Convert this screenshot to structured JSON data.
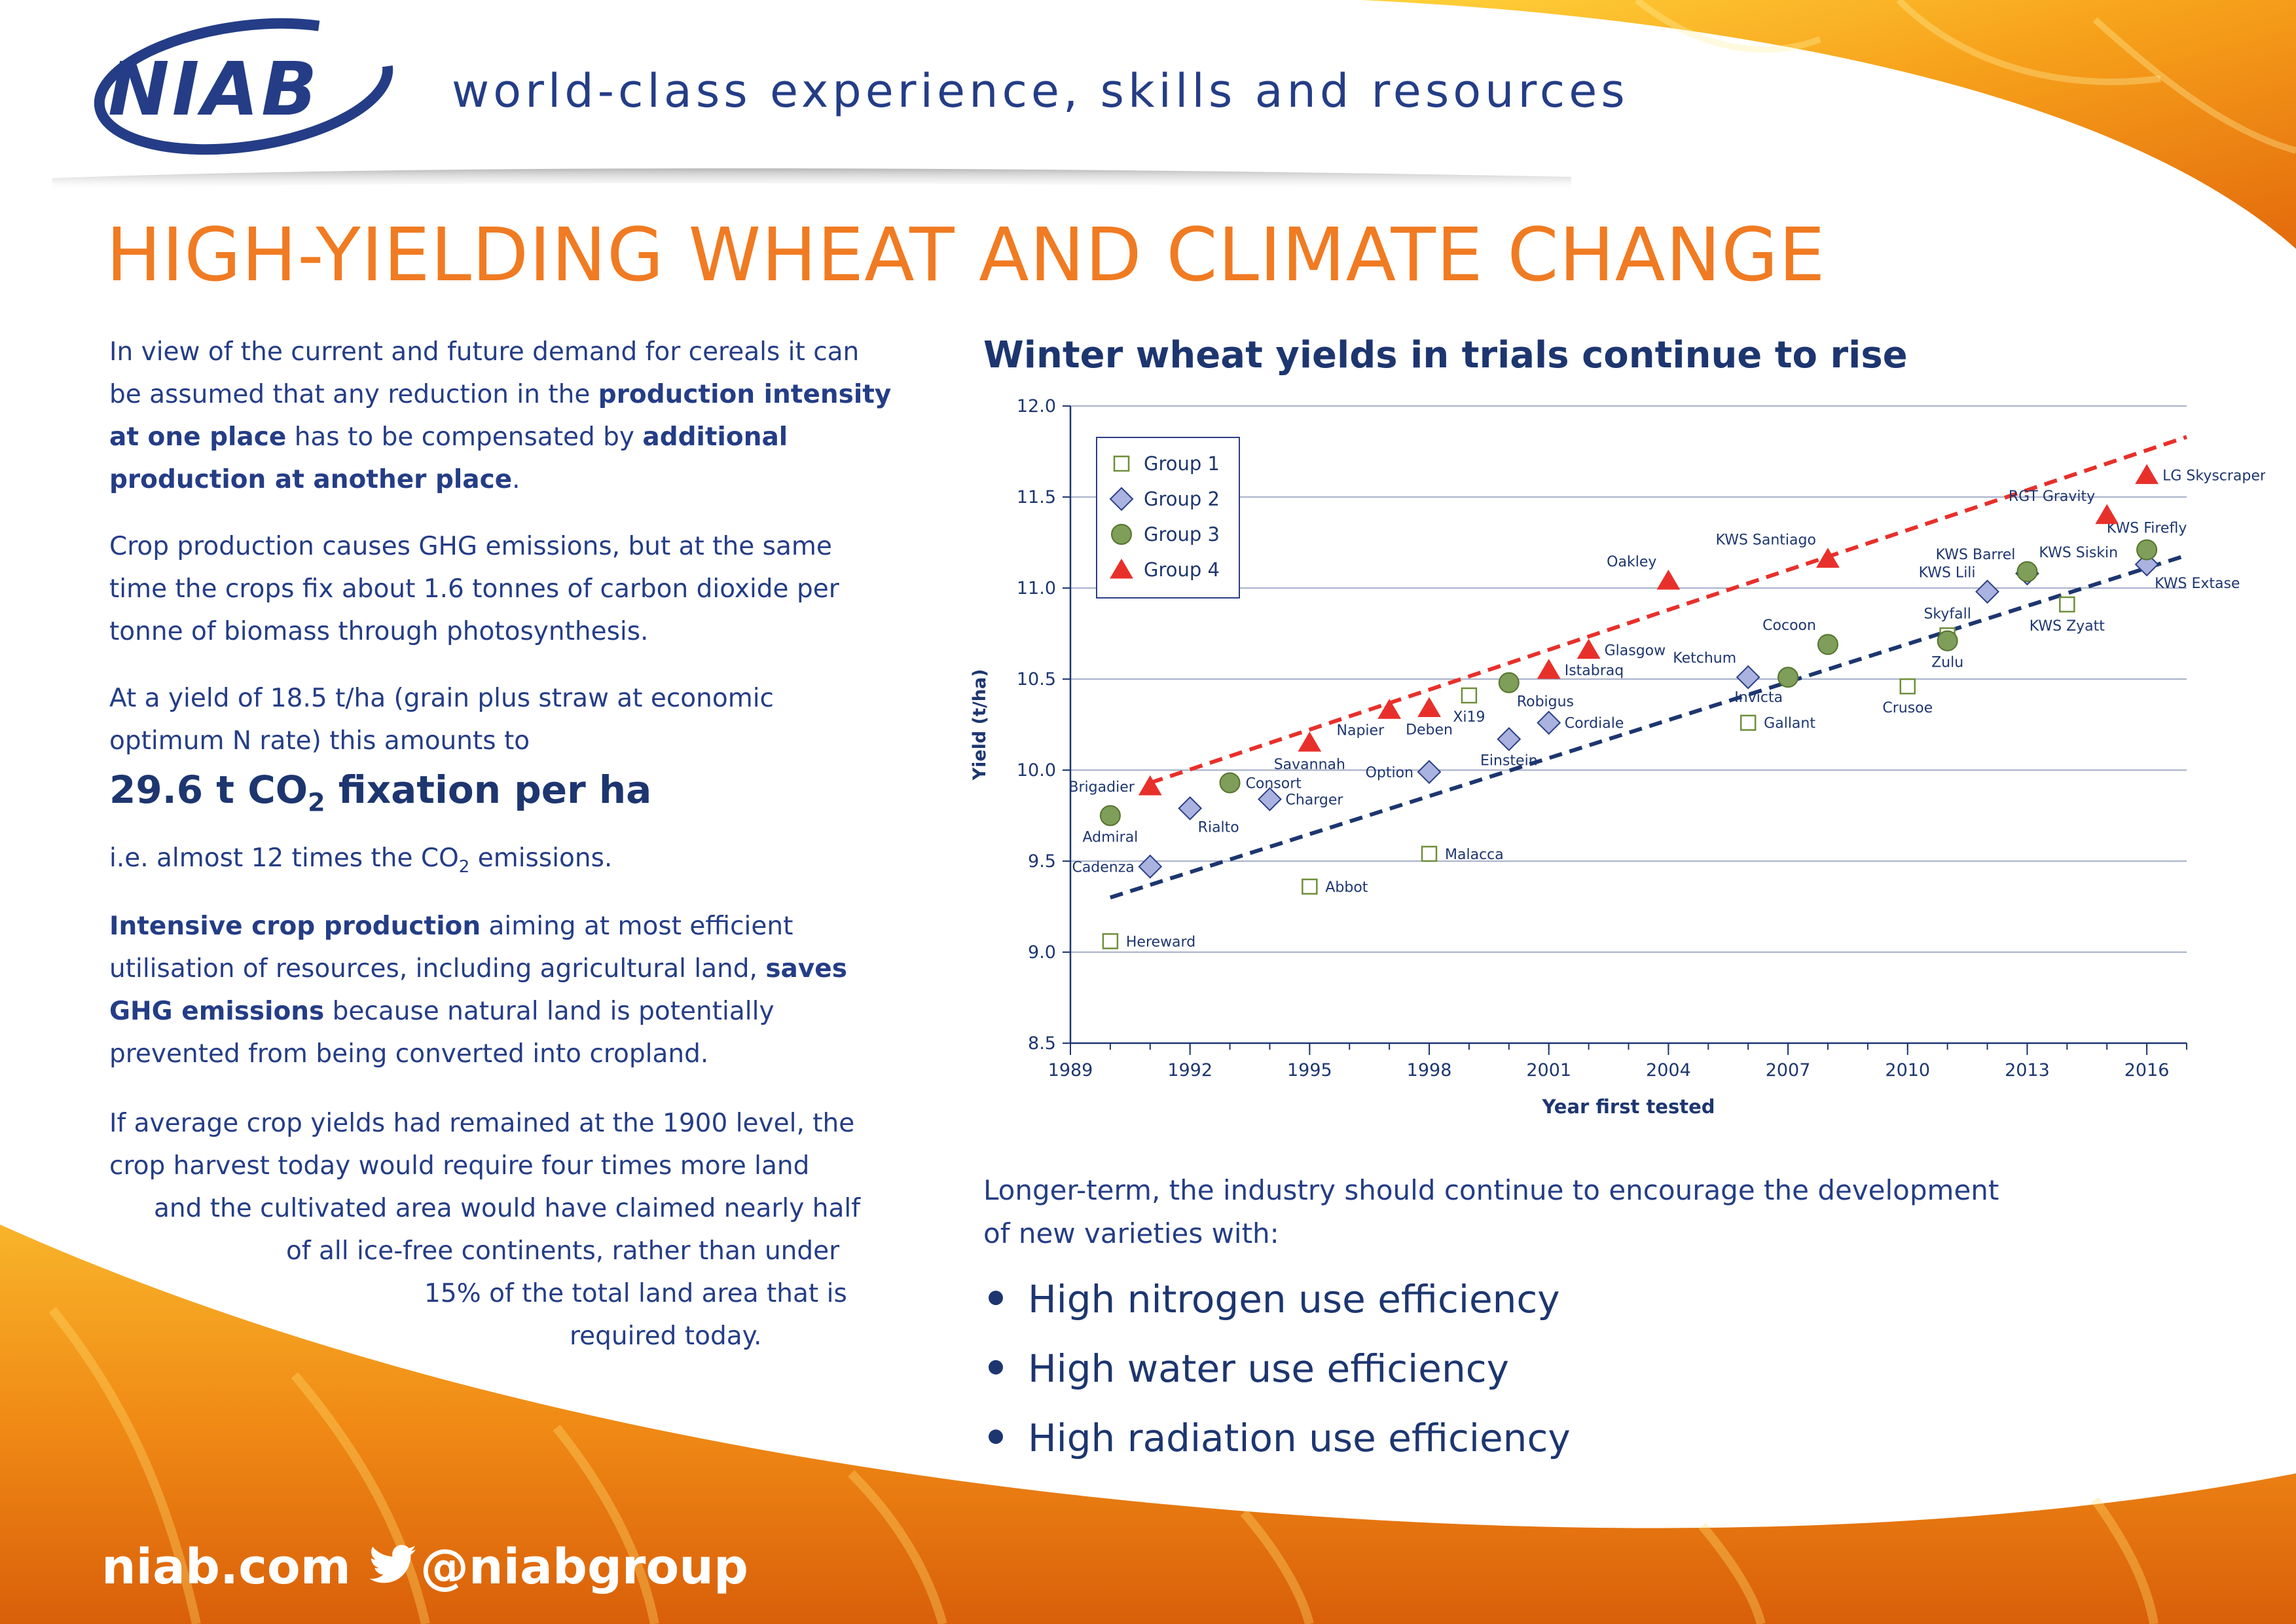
{
  "header": {
    "logo_text": "NIAB",
    "tagline": "world-class experience, skills and resources"
  },
  "title": "HIGH-YIELDING WHEAT AND CLIMATE CHANGE",
  "left": {
    "p1": {
      "s1": "In view of the current and future demand for cereals it can be assumed that any reduction in the ",
      "b1": "production intensity at one place",
      "s2": " has to be compensated by ",
      "b2": "additional production at another place",
      "s3": "."
    },
    "p2": "Crop production causes GHG emissions, but at the same time the crops fix about 1.6 tonnes of carbon dioxide per tonne of biomass through photosynthesis.",
    "p3": "At a yield of 18.5 t/ha (grain plus straw at economic optimum N rate) this amounts to",
    "big_stat": {
      "a": "29.6 t CO",
      "sub": "2",
      "b": " fixation per ha"
    },
    "p4": {
      "a": "i.e. almost 12 times the CO",
      "sub": "2",
      "b": " emissions."
    },
    "p5": {
      "b1": "Intensive crop production",
      "s1": " aiming at most efficient utilisation of resources, including agricultural land, ",
      "b2": "saves GHG emissions",
      "s2": " because natural land is potentially prevented from being converted into cropland."
    },
    "p6_lines": [
      "If average crop yields had remained at the 1900 level, the",
      "crop harvest today would require four times more land",
      "and the cultivated area would have claimed nearly half",
      "of all ice-free continents, rather than under",
      "15% of the total land area that is",
      "required today."
    ]
  },
  "chart_title": "Winter wheat yields in trials continue to rise",
  "chart_data": {
    "type": "scatter",
    "title": "Winter wheat yields in trials continue to rise",
    "xlabel": "Year first tested",
    "ylabel": "Yield (t/ha)",
    "xlim": [
      1989,
      2017
    ],
    "ylim": [
      8.5,
      12.0
    ],
    "xticks": [
      "1989",
      "1992",
      "1995",
      "1998",
      "2001",
      "2004",
      "2007",
      "2010",
      "2013",
      "2016"
    ],
    "yticks": [
      "8.5",
      "9.0",
      "9.5",
      "10.0",
      "10.5",
      "11.0",
      "11.5",
      "12.0"
    ],
    "grid": "horizontal",
    "legend_position": "top-left",
    "series": [
      {
        "name": "Group 1",
        "marker": "square",
        "color": "#6e8f3a",
        "fill": "#ffffff",
        "points": [
          {
            "x": 1990,
            "y": 9.06,
            "label": "Hereward",
            "lp": "right"
          },
          {
            "x": 1995,
            "y": 9.36,
            "label": "Abbot",
            "lp": "right"
          },
          {
            "x": 1998,
            "y": 9.54,
            "label": "Malacca",
            "lp": "right"
          },
          {
            "x": 1999,
            "y": 10.41,
            "label": "Xi19",
            "lp": "below"
          },
          {
            "x": 2006,
            "y": 10.26,
            "label": "Gallant",
            "lp": "right"
          },
          {
            "x": 2010,
            "y": 10.46,
            "label": "Crusoe",
            "lp": "below"
          },
          {
            "x": 2011,
            "y": 10.74,
            "label": "Skyfall",
            "lp": "above"
          },
          {
            "x": 2014,
            "y": 10.91,
            "label": "KWS Zyatt",
            "lp": "below"
          }
        ]
      },
      {
        "name": "Group 2",
        "marker": "diamond",
        "color": "#2b3f86",
        "fill": "#aab3df",
        "points": [
          {
            "x": 1991,
            "y": 9.47,
            "label": "Cadenza",
            "lp": "left"
          },
          {
            "x": 1992,
            "y": 9.79,
            "label": "Rialto",
            "lp": "belowright"
          },
          {
            "x": 1994,
            "y": 9.84,
            "label": "Charger",
            "lp": "right"
          },
          {
            "x": 1998,
            "y": 9.99,
            "label": "Option",
            "lp": "left"
          },
          {
            "x": 2000,
            "y": 10.17,
            "label": "Einstein",
            "lp": "below"
          },
          {
            "x": 2001,
            "y": 10.26,
            "label": "Cordiale",
            "lp": "right"
          },
          {
            "x": 2006,
            "y": 10.51,
            "label": "Ketchum",
            "lp": "aboveleft"
          },
          {
            "x": 2012,
            "y": 10.98,
            "label": "KWS Lili",
            "lp": "aboveleft"
          },
          {
            "x": 2013,
            "y": 11.08,
            "label": "KWS Barrel",
            "lp": "aboveleft"
          },
          {
            "x": 2016,
            "y": 11.13,
            "label": "KWS Extase",
            "lp": "belowright"
          }
        ]
      },
      {
        "name": "Group 3",
        "marker": "circle",
        "color": "#55732d",
        "fill": "#7f9e5a",
        "points": [
          {
            "x": 1990,
            "y": 9.75,
            "label": "Admiral",
            "lp": "below"
          },
          {
            "x": 1993,
            "y": 9.93,
            "label": "Consort",
            "lp": "right"
          },
          {
            "x": 2000,
            "y": 10.48,
            "label": "Robigus",
            "lp": "belowright"
          },
          {
            "x": 2007,
            "y": 10.51,
            "label": "Invicta",
            "lp": "belowleft"
          },
          {
            "x": 2008,
            "y": 10.69,
            "label": "Cocoon",
            "lp": "aboveleft"
          },
          {
            "x": 2011,
            "y": 10.71,
            "label": "Zulu",
            "lp": "below"
          },
          {
            "x": 2013,
            "y": 11.09,
            "label": "KWS Siskin",
            "lp": "aboveright"
          },
          {
            "x": 2016,
            "y": 11.21,
            "label": "KWS Firefly",
            "lp": "above"
          }
        ]
      },
      {
        "name": "Group 4",
        "marker": "triangle",
        "color": "#e8302b",
        "fill": "#e8302b",
        "points": [
          {
            "x": 1991,
            "y": 9.91,
            "label": "Brigadier",
            "lp": "left"
          },
          {
            "x": 1995,
            "y": 10.15,
            "label": "Savannah",
            "lp": "below"
          },
          {
            "x": 1997,
            "y": 10.33,
            "label": "Napier",
            "lp": "belowleft"
          },
          {
            "x": 1998,
            "y": 10.34,
            "label": "Deben",
            "lp": "below"
          },
          {
            "x": 2001,
            "y": 10.55,
            "label": "Istabraq",
            "lp": "right"
          },
          {
            "x": 2002,
            "y": 10.66,
            "label": "Glasgow",
            "lp": "right"
          },
          {
            "x": 2004,
            "y": 11.04,
            "label": "Oakley",
            "lp": "aboveleft"
          },
          {
            "x": 2008,
            "y": 11.16,
            "label": "KWS Santiago",
            "lp": "aboveleft"
          },
          {
            "x": 2015,
            "y": 11.4,
            "label": "RGT Gravity",
            "lp": "aboveleft"
          },
          {
            "x": 2016,
            "y": 11.62,
            "label": "LG Skyscraper",
            "lp": "right"
          }
        ]
      }
    ],
    "trendlines": [
      {
        "series": "Group 4",
        "color": "#e8302b",
        "style": "dashed",
        "from": [
          1991,
          9.93
        ],
        "to": [
          2017,
          11.83
        ]
      },
      {
        "series": "Group 2",
        "color": "#1d3670",
        "style": "dashed",
        "from": [
          1990,
          9.3
        ],
        "to": [
          2017,
          11.18
        ]
      }
    ]
  },
  "closing_text": "Longer-term, the industry should continue to encourage the development of new varieties with:",
  "bullets": [
    "High nitrogen use efficiency",
    "High water use efficiency",
    "High radiation use efficiency"
  ],
  "footer": {
    "website": "niab.com",
    "twitter": "@niabgroup"
  }
}
